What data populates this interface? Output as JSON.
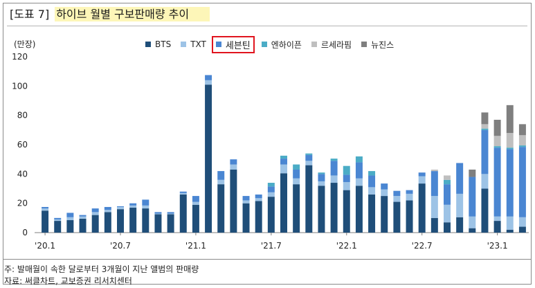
{
  "header": {
    "tag": "[도표 7]",
    "title": "하이브 월별 구보판매량 추이"
  },
  "notes": {
    "line1": "주: 발매월이 속한 달로부터 3개월이 지난 앨범의 판매량",
    "line2": "자료: 써클차트, 교보증권 리서치센터"
  },
  "colors": {
    "BTS": "#1f4e79",
    "TXT": "#9dc3e6",
    "세븐틴": "#4a86d2",
    "엔하이픈": "#4bacc6",
    "르세라핌": "#bfbfbf",
    "뉴진스": "#7f7f7f",
    "highlight_border": "#e0141e"
  },
  "chart_data": {
    "type": "bar",
    "stacked": true,
    "unit": "(만장)",
    "ylim": [
      0,
      120
    ],
    "yticks": [
      0,
      20,
      40,
      60,
      80,
      100,
      120
    ],
    "x_tick_labels": [
      "'20.1",
      "'20.7",
      "'21.1",
      "'21.7",
      "'22.1",
      "'22.7",
      "'23.1"
    ],
    "x_tick_months": [
      "2020-01",
      "2020-07",
      "2021-01",
      "2021-07",
      "2022-01",
      "2022-07",
      "2023-01"
    ],
    "legend_highlight": "세븐틴",
    "months": [
      "2020-01",
      "2020-02",
      "2020-03",
      "2020-04",
      "2020-05",
      "2020-06",
      "2020-07",
      "2020-08",
      "2020-09",
      "2020-10",
      "2020-11",
      "2020-12",
      "2021-01",
      "2021-02",
      "2021-03",
      "2021-04",
      "2021-05",
      "2021-06",
      "2021-07",
      "2021-08",
      "2021-09",
      "2021-10",
      "2021-11",
      "2021-12",
      "2022-01",
      "2022-02",
      "2022-03",
      "2022-04",
      "2022-05",
      "2022-06",
      "2022-07",
      "2022-08",
      "2022-09",
      "2022-10",
      "2022-11",
      "2022-12",
      "2023-01",
      "2023-02",
      "2023-03"
    ],
    "series": [
      {
        "name": "BTS",
        "values": [
          15,
          8,
          8.5,
          9.5,
          12,
          14,
          16,
          17,
          16.5,
          12.5,
          12.5,
          26,
          19,
          101,
          33,
          43,
          20,
          21.5,
          24.5,
          40.5,
          33,
          46,
          32,
          34,
          29,
          32,
          26,
          25,
          21,
          22,
          33.5,
          10,
          7,
          10.5,
          3,
          30,
          8,
          2,
          4
        ]
      },
      {
        "name": "TXT",
        "values": [
          1.5,
          1,
          2,
          1.5,
          2,
          1.5,
          1.5,
          1.5,
          2,
          0.5,
          0.5,
          1,
          2,
          3,
          3,
          3.5,
          2,
          2,
          3,
          6,
          4,
          3,
          3,
          5,
          5.5,
          5,
          5,
          4.5,
          4,
          4.5,
          5,
          15,
          12,
          16,
          8,
          10,
          3,
          9,
          6.5
        ]
      },
      {
        "name": "세븐틴",
        "values": [
          1,
          1,
          3,
          1,
          2.5,
          2,
          0.5,
          1.5,
          4,
          1,
          1,
          1,
          4,
          3.5,
          6,
          3.5,
          3,
          2.5,
          4,
          4,
          6,
          4,
          5,
          10,
          5,
          11,
          8,
          4,
          3.5,
          2.5,
          2.5,
          17,
          14,
          21,
          27,
          30,
          47,
          46,
          48
        ]
      },
      {
        "name": "엔하이픈",
        "values": [
          0,
          0,
          0,
          0,
          0,
          0,
          0,
          0,
          0,
          0,
          0,
          0,
          0,
          0,
          0,
          0,
          0,
          0,
          2.5,
          2,
          3.5,
          1,
          1,
          1.5,
          6,
          4,
          3,
          0,
          0,
          0,
          0,
          0,
          3,
          0,
          0,
          1,
          1,
          1,
          1
        ]
      },
      {
        "name": "르세라핌",
        "values": [
          0,
          0,
          0,
          0,
          0,
          0,
          0,
          0,
          0,
          0,
          0,
          0,
          0,
          0,
          0,
          0,
          0,
          0,
          0,
          0,
          0,
          0,
          0,
          0,
          0,
          0,
          0,
          0,
          0,
          0,
          0,
          1,
          3,
          0,
          0,
          3,
          7,
          10,
          7
        ]
      },
      {
        "name": "뉴진스",
        "values": [
          0,
          0,
          0,
          0,
          0,
          0,
          0,
          0,
          0,
          0,
          0,
          0,
          0,
          0,
          0,
          0,
          0,
          0,
          0,
          0,
          0,
          0,
          0,
          0,
          0,
          0,
          0,
          0,
          0,
          0,
          0,
          0,
          0,
          0,
          5,
          8,
          11,
          19,
          7.5
        ]
      }
    ]
  }
}
